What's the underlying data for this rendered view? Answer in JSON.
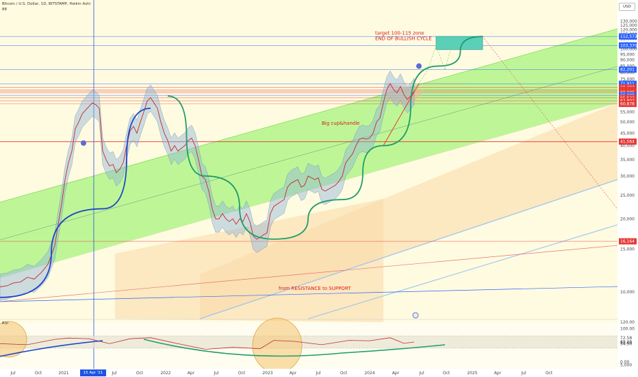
{
  "header": {
    "symbol_line": "Bitcoin / U.S. Dollar, 1D, BITSTAMP, Heikin Ashi",
    "sub_line": "88",
    "currency": "USD",
    "rsi_label": "RSI",
    "crosshair_date": "15 Apr '21"
  },
  "chart_data": {
    "type": "line",
    "title": "Bitcoin / U.S. Dollar, 1D, BITSTAMP, Heikin Ashi",
    "xlabel": "",
    "ylabel": "",
    "log_scale": true,
    "ylim": [
      5000,
      135000
    ],
    "x_tick_labels": [
      "Jul",
      "Oct",
      "2021",
      "Apr",
      "Jul",
      "Oct",
      "2022",
      "Apr",
      "Jul",
      "Oct",
      "2023",
      "Apr",
      "Jul",
      "Oct",
      "2024",
      "Apr",
      "Jul",
      "Oct",
      "2025",
      "Apr",
      "Jul",
      "Oct"
    ],
    "y_tick_labels": [
      "130,000",
      "125,000",
      "120,000",
      "115,000",
      "110,000",
      "105,000",
      "100,000",
      "95,000",
      "90,000",
      "85,000",
      "80,000",
      "75,000",
      "70,000",
      "65,000",
      "60,000",
      "55,000",
      "50,000",
      "45,000",
      "40,000",
      "35,000",
      "30,000",
      "25,000",
      "20,000",
      "15,000",
      "10,000",
      "5,000"
    ],
    "price_tags": [
      {
        "label": "112,572",
        "value": 112572,
        "color": "#2962ff"
      },
      {
        "label": "103,370",
        "value": 103370,
        "color": "#2962ff"
      },
      {
        "label": "82,201",
        "value": 82201,
        "color": "#2962ff"
      },
      {
        "label": "71,911",
        "value": 71911,
        "color": "#2962ff"
      },
      {
        "label": "69,397",
        "value": 69397,
        "color": "#e53935"
      },
      {
        "label": "69,368",
        "value": 67900,
        "color": "#e53935"
      },
      {
        "label": "13:41:30",
        "value": 67000,
        "color": "#e53935"
      },
      {
        "label": "69,005",
        "value": 66100,
        "color": "#e53935"
      },
      {
        "label": "66,998",
        "value": 64400,
        "color": "#2962ff"
      },
      {
        "label": "65,522",
        "value": 62900,
        "color": "#e53935"
      },
      {
        "label": "62,802",
        "value": 61200,
        "color": "#e53935"
      },
      {
        "label": "60,878",
        "value": 59400,
        "color": "#e53935"
      },
      {
        "label": "41,564",
        "value": 41564,
        "color": "#e53935"
      },
      {
        "label": "16,164",
        "value": 16164,
        "color": "#e53935"
      }
    ],
    "series": [
      {
        "values": [
          [
            0,
            10500
          ],
          [
            10,
            10600
          ],
          [
            20,
            10900
          ],
          [
            30,
            11000
          ],
          [
            40,
            11500
          ],
          [
            50,
            11300
          ],
          [
            60,
            12000
          ],
          [
            70,
            13000
          ],
          [
            80,
            15500
          ],
          [
            85,
            19000
          ],
          [
            90,
            23000
          ],
          [
            95,
            29000
          ],
          [
            100,
            34000
          ],
          [
            105,
            38000
          ],
          [
            110,
            47000
          ],
          [
            115,
            50000
          ],
          [
            120,
            54000
          ],
          [
            125,
            56000
          ],
          [
            130,
            58000
          ],
          [
            135,
            60000
          ],
          [
            140,
            59000
          ],
          [
            145,
            57000
          ],
          [
            150,
            38000
          ],
          [
            155,
            35000
          ],
          [
            160,
            33000
          ],
          [
            165,
            33500
          ],
          [
            170,
            31000
          ],
          [
            175,
            32000
          ],
          [
            180,
            34000
          ],
          [
            185,
            40000
          ],
          [
            190,
            46000
          ],
          [
            195,
            48000
          ],
          [
            200,
            45000
          ],
          [
            205,
            50000
          ],
          [
            210,
            55000
          ],
          [
            215,
            61000
          ],
          [
            220,
            63000
          ],
          [
            225,
            60000
          ],
          [
            230,
            57000
          ],
          [
            235,
            50000
          ],
          [
            240,
            45000
          ],
          [
            245,
            42000
          ],
          [
            250,
            38000
          ],
          [
            255,
            40000
          ],
          [
            260,
            38000
          ],
          [
            265,
            39000
          ],
          [
            270,
            40000
          ],
          [
            275,
            42000
          ],
          [
            280,
            43000
          ],
          [
            285,
            40000
          ],
          [
            290,
            35000
          ],
          [
            295,
            30000
          ],
          [
            300,
            29000
          ],
          [
            305,
            26000
          ],
          [
            310,
            22000
          ],
          [
            315,
            20000
          ],
          [
            320,
            20000
          ],
          [
            325,
            21000
          ],
          [
            330,
            20000
          ],
          [
            335,
            19500
          ],
          [
            340,
            20000
          ],
          [
            345,
            19000
          ],
          [
            350,
            20000
          ],
          [
            355,
            19500
          ],
          [
            360,
            21000
          ],
          [
            365,
            19500
          ],
          [
            370,
            17000
          ],
          [
            375,
            16500
          ],
          [
            380,
            16800
          ],
          [
            385,
            17200
          ],
          [
            390,
            17500
          ],
          [
            395,
            21000
          ],
          [
            400,
            22500
          ],
          [
            405,
            23000
          ],
          [
            410,
            23500
          ],
          [
            415,
            24000
          ],
          [
            420,
            27000
          ],
          [
            425,
            28000
          ],
          [
            430,
            28500
          ],
          [
            435,
            29000
          ],
          [
            440,
            27000
          ],
          [
            445,
            27500
          ],
          [
            450,
            30000
          ],
          [
            455,
            29500
          ],
          [
            460,
            29000
          ],
          [
            465,
            29500
          ],
          [
            470,
            26500
          ],
          [
            475,
            26000
          ],
          [
            480,
            26500
          ],
          [
            485,
            27000
          ],
          [
            490,
            27500
          ],
          [
            495,
            28500
          ],
          [
            500,
            30000
          ],
          [
            505,
            34000
          ],
          [
            510,
            35500
          ],
          [
            515,
            37000
          ],
          [
            520,
            40000
          ],
          [
            525,
            42500
          ],
          [
            530,
            43000
          ],
          [
            535,
            42500
          ],
          [
            540,
            43000
          ],
          [
            545,
            45000
          ],
          [
            550,
            50000
          ],
          [
            555,
            52000
          ],
          [
            560,
            60000
          ],
          [
            565,
            68000
          ],
          [
            570,
            72000
          ],
          [
            575,
            68000
          ],
          [
            580,
            66000
          ],
          [
            585,
            70000
          ],
          [
            590,
            65000
          ],
          [
            595,
            62000
          ],
          [
            600,
            64000
          ],
          [
            605,
            67000
          ]
        ]
      },
      {
        "values": [
          [
            0,
            9500
          ],
          [
            150,
            22000
          ],
          [
            220,
            57000
          ]
        ]
      },
      {
        "values": [
          [
            245,
            64000
          ],
          [
            300,
            30000
          ],
          [
            400,
            16500
          ],
          [
            500,
            24000
          ],
          [
            560,
            40000
          ],
          [
            640,
            85000
          ],
          [
            705,
            112572
          ]
        ]
      },
      {
        "values": [
          [
            560,
            40000
          ],
          [
            612,
            72000
          ]
        ]
      }
    ],
    "rsi": {
      "y_tick_labels": [
        "120.00",
        "100.00",
        "72.58",
        "60.20",
        "57.60",
        "54.50",
        "0.00"
      ],
      "values": [
        [
          0,
          55
        ],
        [
          40,
          52
        ],
        [
          80,
          68
        ],
        [
          100,
          72
        ],
        [
          130,
          70
        ],
        [
          160,
          55
        ],
        [
          190,
          70
        ],
        [
          220,
          73
        ],
        [
          260,
          55
        ],
        [
          300,
          38
        ],
        [
          340,
          44
        ],
        [
          380,
          40
        ],
        [
          400,
          65
        ],
        [
          430,
          62
        ],
        [
          470,
          52
        ],
        [
          510,
          65
        ],
        [
          540,
          64
        ],
        [
          570,
          73
        ],
        [
          590,
          56
        ],
        [
          605,
          60
        ]
      ]
    }
  },
  "annotations": {
    "target_line1": "target 100-115 zone",
    "target_line2": "END OF BULLISH CYCLE",
    "cup_handle": "Big cup&handle",
    "resistance_support": "from RESISTANCE to SUPPORT"
  },
  "colors": {
    "channel_fill": "#b3f58a",
    "channel_border": "#7ed957",
    "target_box": "#5ccfb9",
    "cup_curve": "#1f9d6a",
    "bull_curve": "#1f46c8",
    "accent_blue": "#2962ff",
    "accent_red": "#e53935",
    "crosshair": "#1e53e5"
  }
}
